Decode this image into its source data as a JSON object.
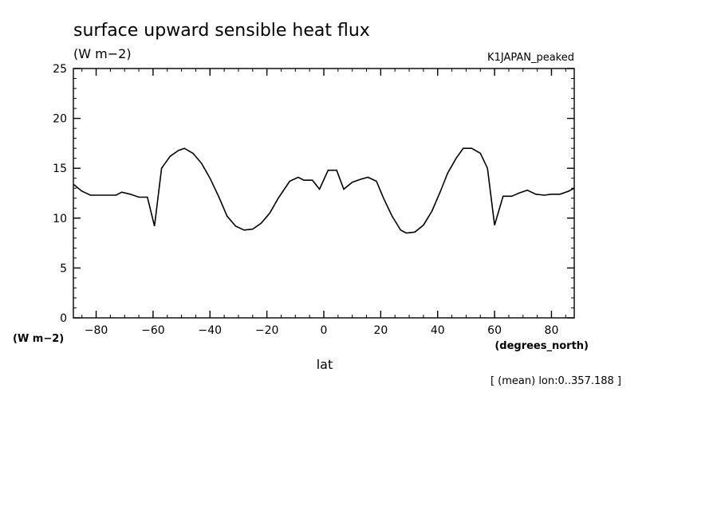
{
  "chart_data": {
    "type": "line",
    "title": "surface upward sensible heat flux",
    "units_label": "(W m−2)",
    "dataset_label": "K1JAPAN_peaked",
    "y_axis_units": "(W m−2)",
    "x_axis_units": "(degrees_north)",
    "xlabel": "lat",
    "footnote": "[ (mean) lon:0..357.188 ]",
    "xlim": [
      -88,
      88
    ],
    "ylim": [
      0,
      25
    ],
    "x_ticks": [
      -80,
      -60,
      -40,
      -20,
      0,
      20,
      40,
      60,
      80
    ],
    "x_tick_labels": [
      "−80",
      "−60",
      "−40",
      "−20",
      "0",
      "20",
      "40",
      "60",
      "80"
    ],
    "y_ticks": [
      0,
      5,
      10,
      15,
      20,
      25
    ],
    "y_tick_labels": [
      "0",
      "5",
      "10",
      "15",
      "20",
      "25"
    ],
    "grid": false,
    "series": [
      {
        "x": [
          -88,
          -85,
          -82,
          -79,
          -76,
          -73,
          -71,
          -68,
          -65,
          -62,
          -59.5,
          -57,
          -54,
          -51,
          -49,
          -46,
          -43,
          -40,
          -37,
          -34,
          -31,
          -28,
          -25,
          -22,
          -19,
          -16,
          -12,
          -9,
          -7,
          -4,
          -1.5,
          1.5,
          4.5,
          7,
          10,
          13,
          15.5,
          18.5,
          21,
          24,
          27,
          29,
          32,
          35,
          38,
          41,
          43.5,
          46.5,
          49,
          52,
          55,
          57.5,
          60,
          63,
          66,
          68.5,
          71.5,
          74.5,
          77.5,
          80,
          83,
          86,
          88
        ],
        "y": [
          13.4,
          12.7,
          12.3,
          12.3,
          12.3,
          12.3,
          12.6,
          12.4,
          12.1,
          12.1,
          9.2,
          15.0,
          16.2,
          16.8,
          17.0,
          16.5,
          15.5,
          14.0,
          12.2,
          10.2,
          9.2,
          8.8,
          8.9,
          9.5,
          10.5,
          12.0,
          13.7,
          14.1,
          13.8,
          13.8,
          12.9,
          14.8,
          14.8,
          12.9,
          13.6,
          13.9,
          14.1,
          13.7,
          12.0,
          10.2,
          8.8,
          8.5,
          8.6,
          9.3,
          10.7,
          12.7,
          14.5,
          16.0,
          17.0,
          17.0,
          16.5,
          15.0,
          9.3,
          12.2,
          12.2,
          12.5,
          12.8,
          12.4,
          12.3,
          12.4,
          12.4,
          12.7,
          13.0
        ]
      }
    ]
  }
}
